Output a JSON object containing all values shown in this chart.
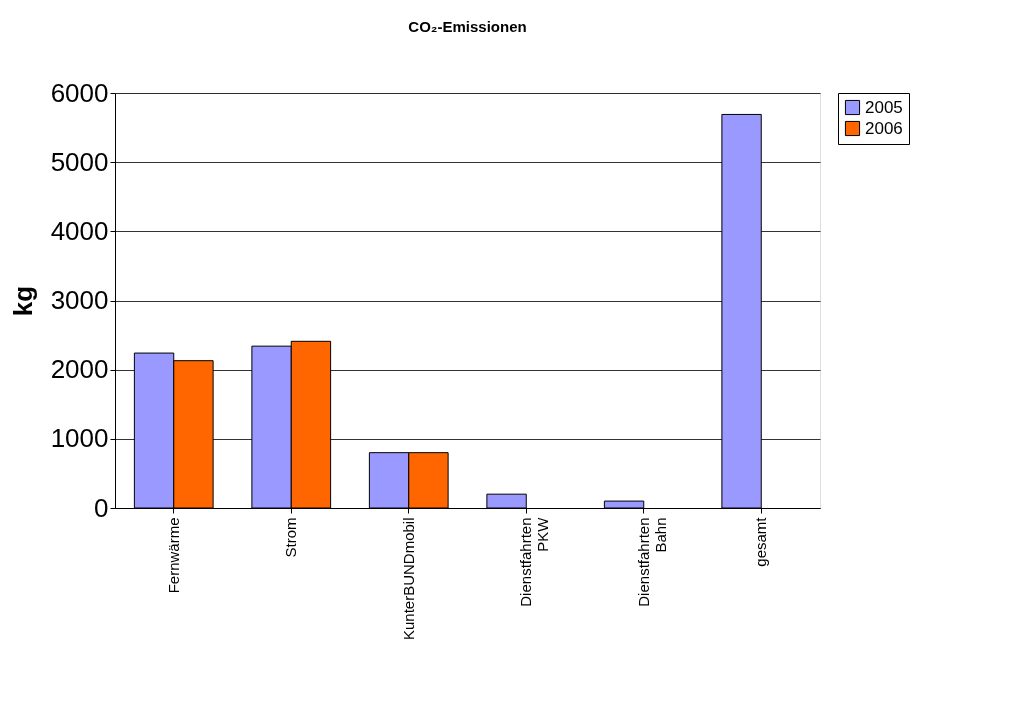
{
  "chart_data": {
    "type": "bar",
    "title": "CO₂-Emissionen",
    "ylabel": "kg",
    "categories": [
      "Fernwärme",
      "Strom",
      "KunterBUNDmobil",
      "Dienstfahrten PKW",
      "Dienstfahrten Bahn",
      "gesamt"
    ],
    "series": [
      {
        "name": "2005",
        "color": "#9999ff",
        "values": [
          2240,
          2340,
          800,
          200,
          100,
          5690
        ]
      },
      {
        "name": "2006",
        "color": "#ff6600",
        "values": [
          2130,
          2410,
          800,
          null,
          null,
          null
        ]
      }
    ],
    "ylim": [
      0,
      6000
    ],
    "yticks": [
      0,
      1000,
      2000,
      3000,
      4000,
      5000,
      6000
    ],
    "grid": "y",
    "legend": "right"
  }
}
